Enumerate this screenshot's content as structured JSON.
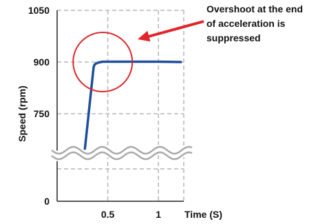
{
  "chart_data": {
    "type": "line",
    "title": "",
    "xlabel": "Time (S)",
    "ylabel": "Speed (rpm)",
    "xlim": [
      0,
      1.25
    ],
    "ylim_upper": [
      750,
      1050
    ],
    "x_ticks": [
      {
        "value": 0.5,
        "label": "0.5"
      },
      {
        "value": 1,
        "label": "1"
      }
    ],
    "y_ticks": [
      {
        "value": 0,
        "label": "0"
      },
      {
        "value": 750,
        "label": "750"
      },
      {
        "value": 900,
        "label": "900"
      },
      {
        "value": 1050,
        "label": "1050"
      }
    ],
    "axis_break": true,
    "grid": "dashed",
    "series": [
      {
        "color": "#1f4e9c",
        "x": [
          0.27,
          0.36,
          0.37,
          0.4,
          0.45,
          0.55,
          0.8,
          1.0,
          1.23
        ],
        "y": [
          680,
          885,
          893,
          898,
          901,
          901,
          901,
          901,
          900
        ]
      }
    ],
    "annotation": {
      "lines": [
        "Overshoot at the end",
        "of acceleration is",
        "suppressed"
      ],
      "circle_center": {
        "x": 0.45,
        "y": 900
      },
      "circle_color": "#e0252b",
      "arrow_color": "#e0252b"
    }
  }
}
